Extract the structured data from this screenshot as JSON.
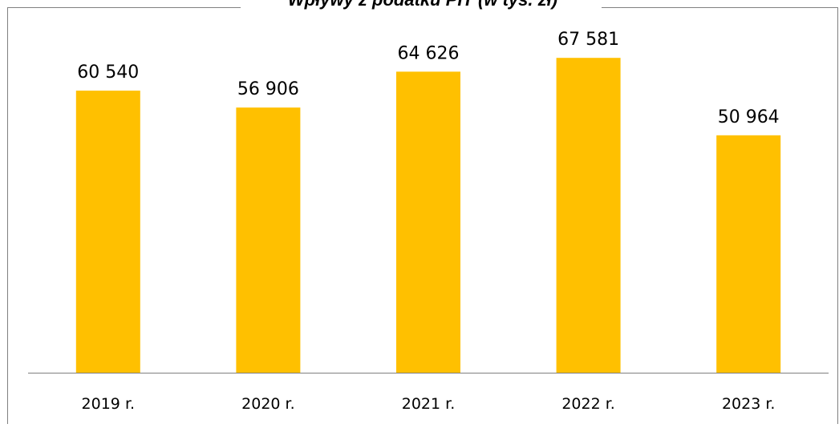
{
  "chart_data": {
    "type": "bar",
    "title": "Wpływy z podatku PIT (w tys. zł)",
    "categories": [
      "2019 r.",
      "2020 r.",
      "2021 r.",
      "2022 r.",
      "2023 r."
    ],
    "values": [
      60540,
      56906,
      64626,
      67581,
      50964
    ],
    "value_labels": [
      "60 540",
      "56 906",
      "64 626",
      "67 581",
      "50 964"
    ],
    "bar_color": "#FFC000",
    "axis_color": "#808080",
    "border_color": "#808080",
    "ylim": [
      0,
      80000
    ],
    "grid": false,
    "legend": "none"
  }
}
